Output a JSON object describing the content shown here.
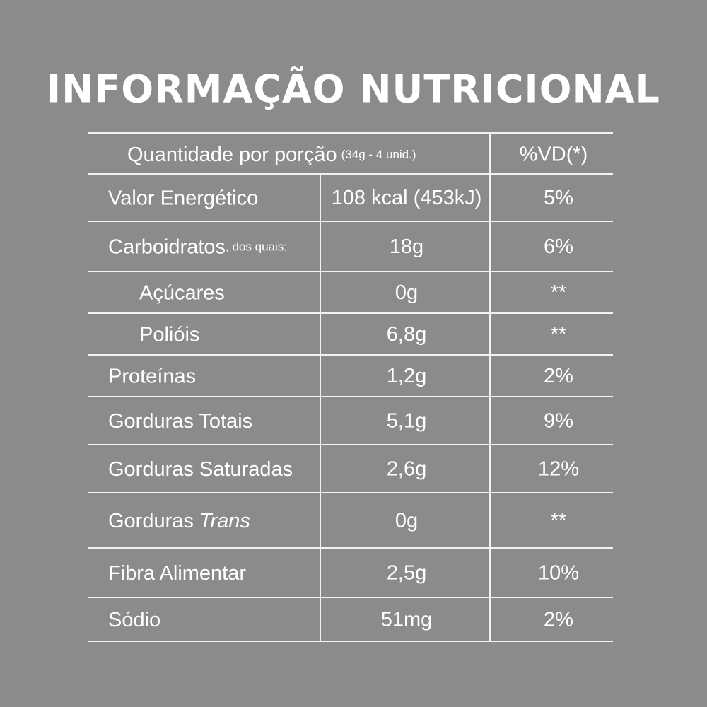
{
  "title": "INFORMAÇÃO NUTRICIONAL",
  "table": {
    "header": {
      "label": "Quantidade por porção",
      "serving": "(34g - 4 unid.)",
      "dv": "%VD(*)"
    },
    "rows": [
      {
        "name": "Valor Energético",
        "amount": "108 kcal (453kJ)",
        "dv": "5%"
      },
      {
        "name": "Carboidratos",
        "note": ", dos quais:",
        "amount": "18g",
        "dv": "6%"
      },
      {
        "name": "Açúcares",
        "amount": "0g",
        "dv": "**"
      },
      {
        "name": "Polióis",
        "amount": "6,8g",
        "dv": "**"
      },
      {
        "name": "Proteínas",
        "amount": "1,2g",
        "dv": "2%"
      },
      {
        "name": "Gorduras Totais",
        "amount": "5,1g",
        "dv": "9%"
      },
      {
        "name": "Gorduras Saturadas",
        "amount": "2,6g",
        "dv": "12%"
      },
      {
        "name": "Gorduras",
        "italic": "Trans",
        "amount": "0g",
        "dv": "**"
      },
      {
        "name": "Fibra Alimentar",
        "amount": "2,5g",
        "dv": "10%"
      },
      {
        "name": "Sódio",
        "amount": "51mg",
        "dv": "2%"
      }
    ]
  }
}
